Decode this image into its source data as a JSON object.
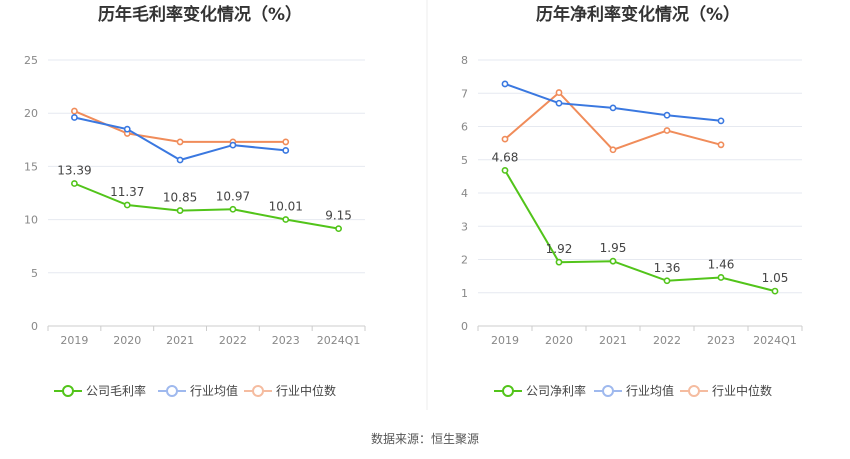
{
  "source_label": "数据来源：恒生聚源",
  "chart_data": [
    {
      "type": "line",
      "title": "历年毛利率变化情况（%）",
      "categories": [
        "2019",
        "2020",
        "2021",
        "2022",
        "2023",
        "2024Q1"
      ],
      "ylim": [
        0,
        25
      ],
      "yticks": [
        "0",
        "5",
        "10",
        "15",
        "20",
        "25"
      ],
      "grid": true,
      "legend_position": "bottom",
      "series": [
        {
          "name": "公司毛利率",
          "color": "#52c41a",
          "values": [
            13.39,
            11.37,
            10.85,
            10.97,
            10.01,
            9.15
          ],
          "labels": [
            "13.39",
            "11.37",
            "10.85",
            "10.97",
            "10.01",
            "9.15"
          ]
        },
        {
          "name": "行业均值",
          "color": "#3a78e0",
          "values": [
            19.6,
            18.5,
            15.6,
            17.0,
            16.5,
            null
          ]
        },
        {
          "name": "行业中位数",
          "color": "#f08c5a",
          "values": [
            20.2,
            18.1,
            17.3,
            17.3,
            17.3,
            null
          ]
        }
      ]
    },
    {
      "type": "line",
      "title": "历年净利率变化情况（%）",
      "categories": [
        "2019",
        "2020",
        "2021",
        "2022",
        "2023",
        "2024Q1"
      ],
      "ylim": [
        0,
        8
      ],
      "yticks": [
        "0",
        "1",
        "2",
        "3",
        "4",
        "5",
        "6",
        "7",
        "8"
      ],
      "grid": true,
      "legend_position": "bottom",
      "series": [
        {
          "name": "公司净利率",
          "color": "#52c41a",
          "values": [
            4.68,
            1.92,
            1.95,
            1.36,
            1.46,
            1.05
          ],
          "labels": [
            "4.68",
            "1.92",
            "1.95",
            "1.36",
            "1.46",
            "1.05"
          ]
        },
        {
          "name": "行业均值",
          "color": "#3a78e0",
          "values": [
            7.28,
            6.7,
            6.56,
            6.34,
            6.17,
            null
          ]
        },
        {
          "name": "行业中位数",
          "color": "#f08c5a",
          "values": [
            5.62,
            7.02,
            5.3,
            5.88,
            5.45,
            null
          ]
        }
      ]
    }
  ]
}
